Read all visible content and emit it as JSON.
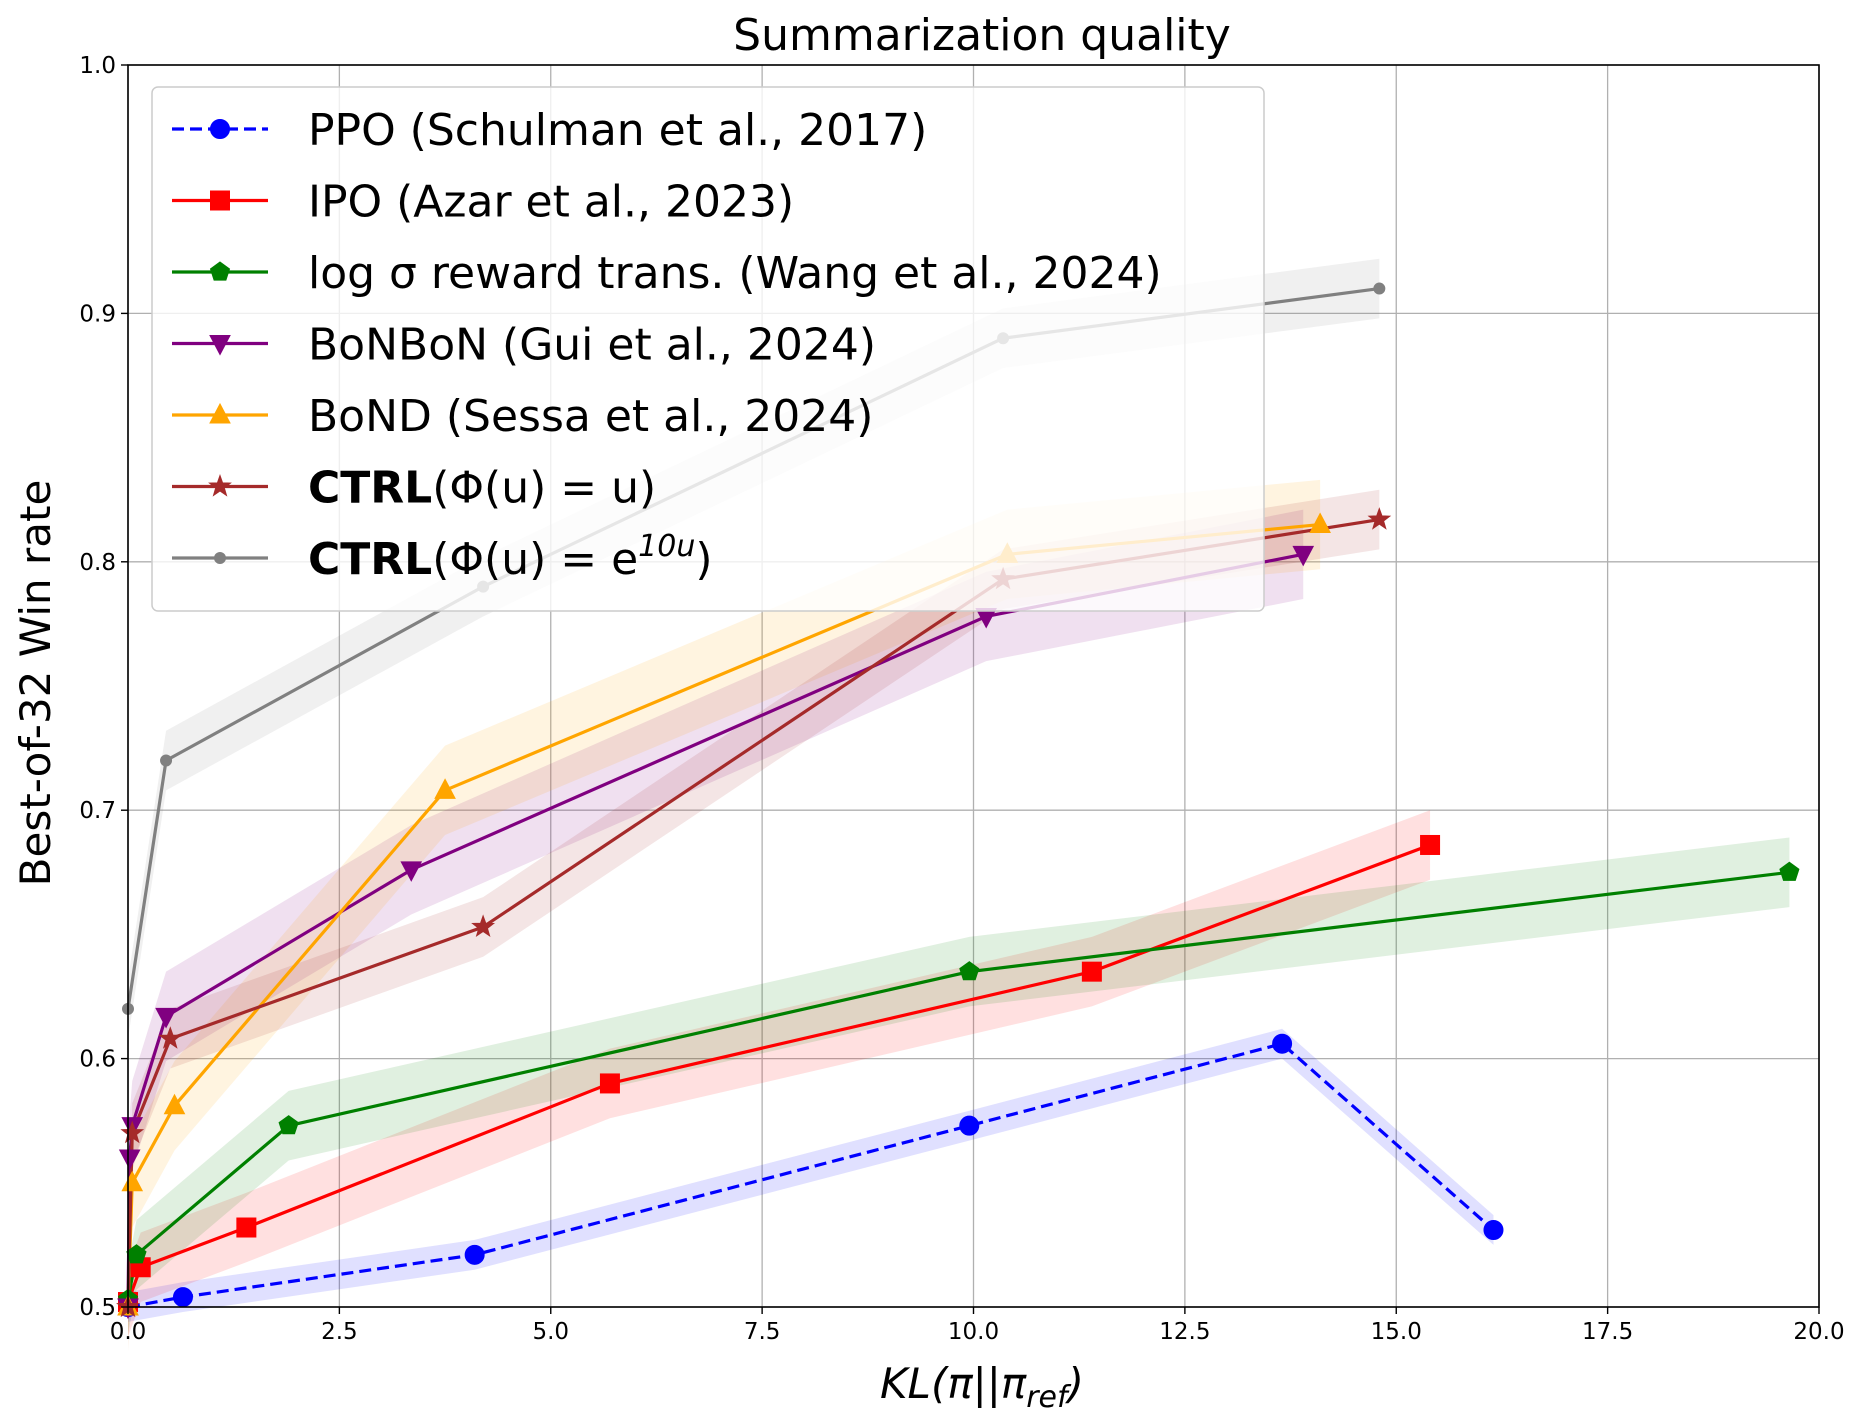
{
  "chart_data": {
    "type": "line",
    "title": "Summarization quality",
    "xlabel": "KL(π||π_ref)",
    "ylabel": "Best-of-32 Win rate",
    "xlim": [
      0,
      20
    ],
    "ylim": [
      0.5,
      1.0
    ],
    "xticks": [
      "0.0",
      "2.5",
      "5.0",
      "7.5",
      "10.0",
      "12.5",
      "15.0",
      "17.5",
      "20.0"
    ],
    "yticks": [
      "0.5",
      "0.6",
      "0.7",
      "0.8",
      "0.9",
      "1.0"
    ],
    "grid": true,
    "legend_position": "top-left",
    "series": [
      {
        "name": "PPO (Schulman et al., 2017)",
        "color": "#0000ff",
        "marker": "circle",
        "dashed": true,
        "x": [
          0.0,
          0.65,
          4.1,
          9.95,
          13.65,
          16.15
        ],
        "y": [
          0.5,
          0.504,
          0.521,
          0.573,
          0.606,
          0.531
        ],
        "band": 0.006
      },
      {
        "name": "IPO (Azar et al., 2023)",
        "color": "#ff0000",
        "marker": "square",
        "dashed": false,
        "x": [
          0.0,
          0.15,
          1.4,
          5.7,
          11.4,
          15.4
        ],
        "y": [
          0.502,
          0.516,
          0.532,
          0.59,
          0.635,
          0.686
        ],
        "band": 0.014
      },
      {
        "name": "log σ reward trans. (Wang et al., 2024)",
        "color": "#008000",
        "marker": "pentagon",
        "dashed": false,
        "x": [
          0.0,
          0.1,
          1.9,
          9.95,
          19.65
        ],
        "y": [
          0.503,
          0.521,
          0.573,
          0.635,
          0.675
        ],
        "band": 0.014
      },
      {
        "name": "BoNBoN (Gui et al., 2024)",
        "color": "#800080",
        "marker": "triangle-down",
        "dashed": false,
        "x": [
          0.0,
          0.02,
          0.05,
          0.45,
          3.35,
          10.15,
          13.9
        ],
        "y": [
          0.5,
          0.56,
          0.573,
          0.617,
          0.676,
          0.778,
          0.803
        ],
        "band": 0.018
      },
      {
        "name": "BoND (Sessa et al., 2024)",
        "color": "#ffa500",
        "marker": "triangle-up",
        "dashed": false,
        "x": [
          0.0,
          0.05,
          0.55,
          3.75,
          10.4,
          14.1
        ],
        "y": [
          0.5,
          0.55,
          0.581,
          0.708,
          0.803,
          0.815
        ],
        "band": 0.018
      },
      {
        "name": "CTRL(Φ(u) = u)",
        "color": "#a52a2a",
        "marker": "star",
        "dashed": false,
        "x": [
          0.0,
          0.05,
          0.5,
          4.2,
          10.35,
          14.8
        ],
        "y": [
          0.5,
          0.57,
          0.608,
          0.653,
          0.793,
          0.817
        ],
        "band": 0.012
      },
      {
        "name": "CTRL(Φ(u) = e^{10u})",
        "color": "#808080",
        "marker": "dot",
        "dashed": false,
        "x": [
          0.0,
          0.45,
          4.2,
          10.35,
          14.8
        ],
        "y": [
          0.62,
          0.72,
          0.79,
          0.89,
          0.91
        ],
        "band": 0.012
      }
    ]
  }
}
